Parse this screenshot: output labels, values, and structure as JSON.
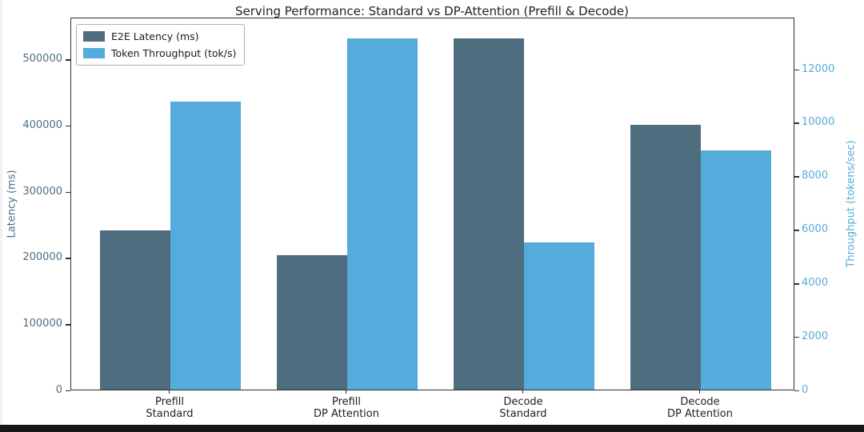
{
  "chart_data": {
    "type": "bar",
    "title": "Serving Performance: Standard vs DP-Attention (Prefill & Decode)",
    "categories": [
      "Prefill\nStandard",
      "Prefill\nDP Attention",
      "Decode\nStandard",
      "Decode\nDP Attention"
    ],
    "series": [
      {
        "name": "E2E Latency (ms)",
        "axis": "left",
        "color": "#4E6E80",
        "values": [
          241000,
          203400,
          530300,
          399500
        ]
      },
      {
        "name": "Token Throughput (tok/s)",
        "axis": "right",
        "color": "#55ABDC",
        "values": [
          10760,
          13120,
          5500,
          8940
        ]
      }
    ],
    "left_axis": {
      "label": "Latency (ms)",
      "color": "#4E6E80",
      "ticks": [
        0,
        100000,
        200000,
        300000,
        400000,
        500000
      ],
      "ylim": [
        0,
        563000
      ]
    },
    "right_axis": {
      "label": "Throughput (tokens/sec)",
      "color": "#55ABDC",
      "ticks": [
        0,
        2000,
        4000,
        6000,
        8000,
        10000,
        12000
      ],
      "ylim": [
        0,
        13930
      ]
    },
    "legend": {
      "position": "upper left",
      "entries": [
        "E2E Latency (ms)",
        "Token Throughput (tok/s)"
      ]
    },
    "grid": false,
    "bar_width_ratio": 0.4
  }
}
